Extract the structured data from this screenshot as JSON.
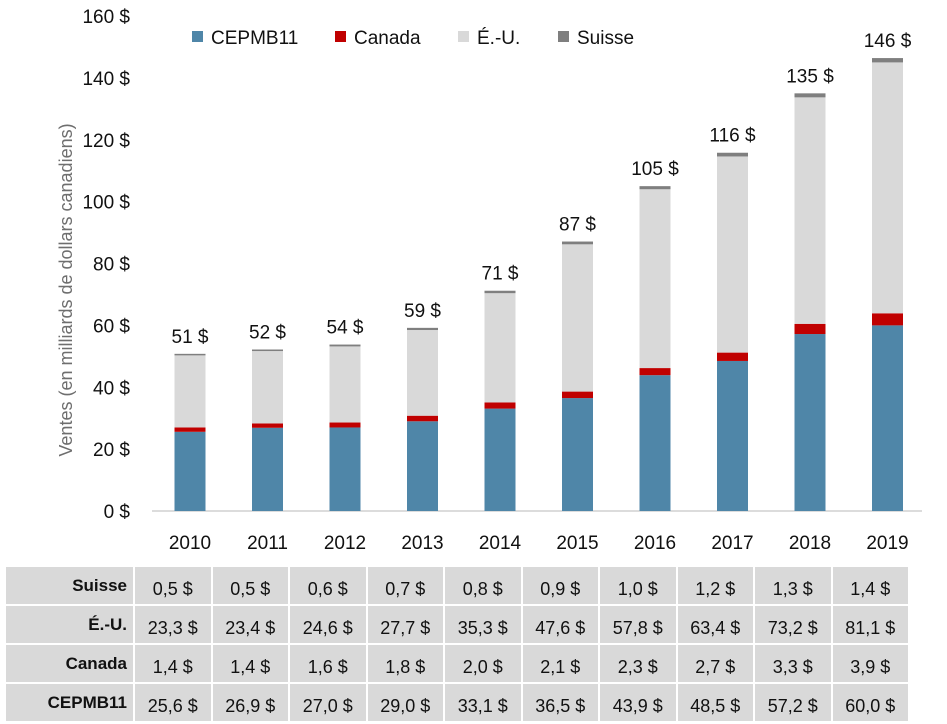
{
  "chart_data": {
    "type": "bar",
    "stacked": true,
    "title": "",
    "xlabel": "",
    "ylabel": "Ventes (en milliards de dollars canadiens)",
    "ylim": [
      0,
      160
    ],
    "yticks": [
      0,
      20,
      40,
      60,
      80,
      100,
      120,
      140,
      160
    ],
    "ytick_labels": [
      "0 $",
      "20 $",
      "40 $",
      "60 $",
      "80 $",
      "100 $",
      "120 $",
      "140 $",
      "160 $"
    ],
    "grid": false,
    "legend_position": "top",
    "categories": [
      "2010",
      "2011",
      "2012",
      "2013",
      "2014",
      "2015",
      "2016",
      "2017",
      "2018",
      "2019"
    ],
    "series": [
      {
        "name": "CEPMB11",
        "color": "#4f86a8",
        "values": [
          25.6,
          26.9,
          27.0,
          29.0,
          33.1,
          36.5,
          43.9,
          48.5,
          57.2,
          60.0
        ]
      },
      {
        "name": "Canada",
        "color": "#c00000",
        "values": [
          1.4,
          1.4,
          1.6,
          1.8,
          2.0,
          2.1,
          2.3,
          2.7,
          3.3,
          3.9
        ]
      },
      {
        "name": "É.-U.",
        "color": "#d9d9d9",
        "values": [
          23.3,
          23.4,
          24.6,
          27.7,
          35.3,
          47.6,
          57.8,
          63.4,
          73.2,
          81.1
        ]
      },
      {
        "name": "Suisse",
        "color": "#7f7f7f",
        "values": [
          0.5,
          0.5,
          0.6,
          0.7,
          0.8,
          0.9,
          1.0,
          1.2,
          1.3,
          1.4
        ]
      }
    ],
    "totals": [
      51,
      52,
      54,
      59,
      71,
      87,
      105,
      116,
      135,
      146
    ],
    "total_labels": [
      "51 $",
      "52 $",
      "54 $",
      "59 $",
      "71 $",
      "87 $",
      "105 $",
      "116 $",
      "135 $",
      "146 $"
    ]
  },
  "table": {
    "rows": [
      {
        "label": "Suisse",
        "cells": [
          "0,5 $",
          "0,5 $",
          "0,6 $",
          "0,7 $",
          "0,8 $",
          "0,9 $",
          "1,0 $",
          "1,2 $",
          "1,3 $",
          "1,4 $"
        ]
      },
      {
        "label": "É.-U.",
        "cells": [
          "23,3 $",
          "23,4 $",
          "24,6 $",
          "27,7 $",
          "35,3 $",
          "47,6 $",
          "57,8 $",
          "63,4 $",
          "73,2 $",
          "81,1 $"
        ]
      },
      {
        "label": "Canada",
        "cells": [
          "1,4 $",
          "1,4 $",
          "1,6 $",
          "1,8 $",
          "2,0 $",
          "2,1 $",
          "2,3 $",
          "2,7 $",
          "3,3 $",
          "3,9 $"
        ]
      },
      {
        "label": "CEPMB11",
        "cells": [
          "25,6 $",
          "26,9 $",
          "27,0 $",
          "29,0 $",
          "33,1 $",
          "36,5 $",
          "43,9 $",
          "48,5 $",
          "57,2 $",
          "60,0 $"
        ]
      }
    ]
  }
}
